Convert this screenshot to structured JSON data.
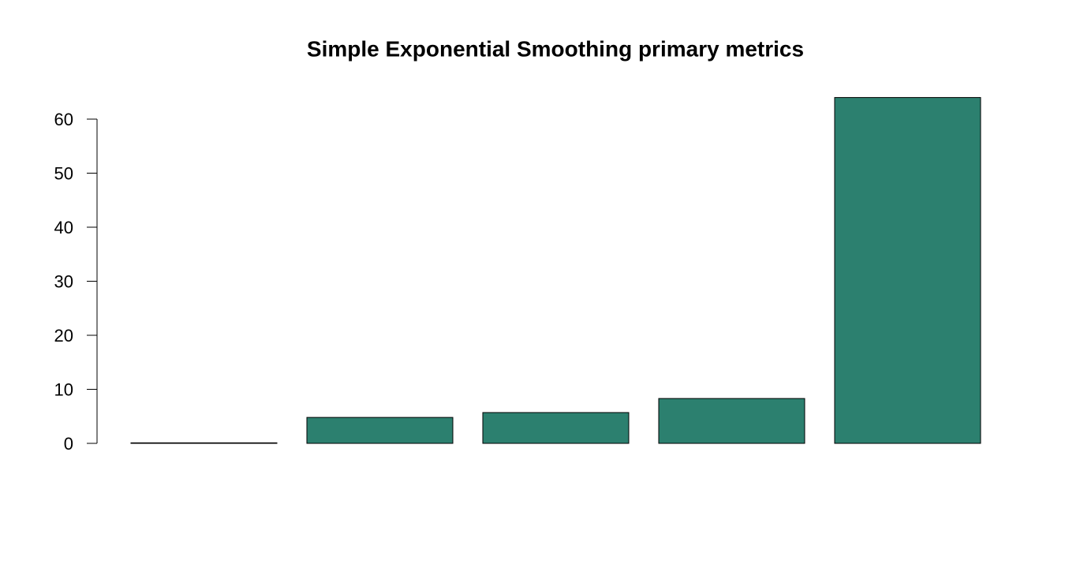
{
  "chart_data": {
    "type": "bar",
    "title": "Simple Exponential Smoothing primary metrics",
    "categories": [
      null,
      null,
      null,
      null,
      null
    ],
    "values": [
      0.1,
      4.8,
      5.7,
      8.3,
      64
    ],
    "color": "#2c806f",
    "ylim": [
      0,
      60
    ],
    "yticks": [
      0,
      10,
      20,
      30,
      40,
      50,
      60
    ]
  }
}
